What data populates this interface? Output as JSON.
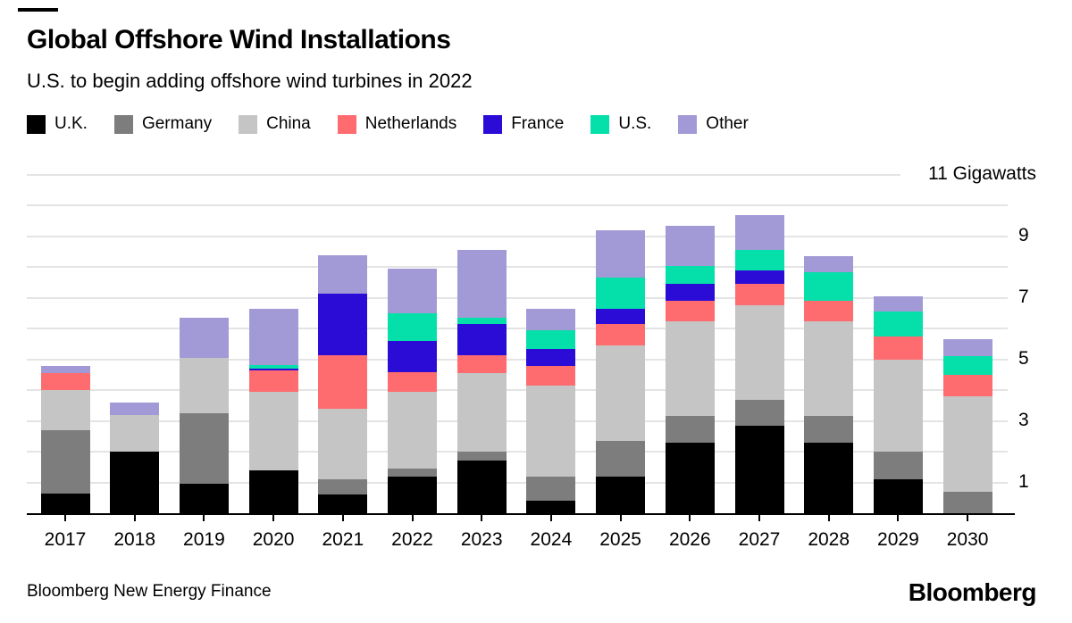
{
  "header": {
    "title": "Global Offshore Wind Installations",
    "subtitle": "U.S. to begin adding offshore wind turbines in 2022"
  },
  "legend": {
    "items": [
      {
        "label": "U.K.",
        "color": "#000000"
      },
      {
        "label": "Germany",
        "color": "#7d7d7d"
      },
      {
        "label": "China",
        "color": "#c5c5c5"
      },
      {
        "label": "Netherlands",
        "color": "#ff6c70"
      },
      {
        "label": "France",
        "color": "#2b0cd7"
      },
      {
        "label": "U.S.",
        "color": "#05e0aa"
      },
      {
        "label": "Other",
        "color": "#a29ad6"
      }
    ]
  },
  "axis": {
    "unit_label": "11 Gigawatts",
    "tick_labels": [
      {
        "label": "9",
        "value": 9
      },
      {
        "label": "7",
        "value": 7
      },
      {
        "label": "5",
        "value": 5
      },
      {
        "label": "3",
        "value": 3
      },
      {
        "label": "1",
        "value": 1
      }
    ]
  },
  "chart_data": {
    "type": "bar",
    "stacked": true,
    "title": "Global Offshore Wind Installations",
    "subtitle": "U.S. to begin adding offshore wind turbines in 2022",
    "ylabel": "Gigawatts",
    "ylim": [
      0,
      11
    ],
    "grid": true,
    "gridline_values": [
      1,
      2,
      3,
      4,
      5,
      6,
      7,
      8,
      9,
      10,
      11
    ],
    "legend_position": "top",
    "categories": [
      "2017",
      "2018",
      "2019",
      "2020",
      "2021",
      "2022",
      "2023",
      "2024",
      "2025",
      "2026",
      "2027",
      "2028",
      "2029",
      "2030"
    ],
    "series": [
      {
        "name": "U.K.",
        "color": "#000000",
        "values": [
          0.65,
          2.0,
          0.95,
          1.4,
          0.6,
          1.2,
          1.7,
          0.4,
          1.2,
          2.3,
          2.85,
          2.3,
          1.1,
          0
        ]
      },
      {
        "name": "Germany",
        "color": "#7d7d7d",
        "values": [
          2.05,
          0,
          2.3,
          0,
          0.5,
          0.25,
          0.3,
          0.8,
          1.15,
          0.85,
          0.85,
          0.85,
          0.9,
          0.7
        ]
      },
      {
        "name": "China",
        "color": "#c5c5c5",
        "values": [
          1.3,
          1.2,
          1.8,
          2.55,
          2.3,
          2.5,
          2.55,
          2.95,
          3.1,
          3.1,
          3.05,
          3.1,
          3.0,
          3.1
        ]
      },
      {
        "name": "Netherlands",
        "color": "#ff6c70",
        "values": [
          0.55,
          0,
          0,
          0.7,
          1.75,
          0.65,
          0.6,
          0.65,
          0.7,
          0.65,
          0.7,
          0.65,
          0.75,
          0.7
        ]
      },
      {
        "name": "France",
        "color": "#2b0cd7",
        "values": [
          0,
          0,
          0,
          0.06,
          2.0,
          1.0,
          1.0,
          0.55,
          0.5,
          0.55,
          0.45,
          0,
          0,
          0
        ]
      },
      {
        "name": "U.S.",
        "color": "#05e0aa",
        "values": [
          0,
          0,
          0,
          0.1,
          0,
          0.9,
          0.2,
          0.6,
          1.0,
          0.6,
          0.65,
          0.95,
          0.8,
          0.6
        ]
      },
      {
        "name": "Other",
        "color": "#a29ad6",
        "values": [
          0.25,
          0.4,
          1.3,
          1.85,
          1.25,
          1.45,
          2.2,
          0.7,
          1.55,
          1.3,
          1.15,
          0.5,
          0.5,
          0.55
        ]
      }
    ]
  },
  "footer": {
    "source": "Bloomberg New Energy Finance",
    "logo": "Bloomberg"
  }
}
